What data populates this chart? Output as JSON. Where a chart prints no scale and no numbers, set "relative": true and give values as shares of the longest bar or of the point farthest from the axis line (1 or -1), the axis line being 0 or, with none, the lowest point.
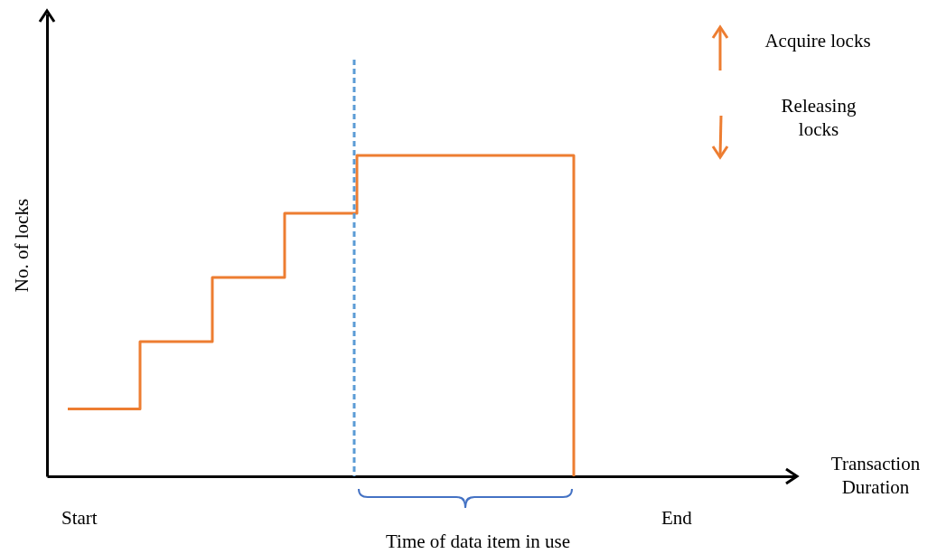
{
  "chart_data": {
    "type": "step",
    "relative": true,
    "ylabel": "No. of locks",
    "categories": [
      null,
      null,
      null,
      null,
      null,
      null,
      null,
      null
    ],
    "series": [
      {
        "color": "#ed7d31",
        "values": [
          0.21,
          0.42,
          0.62,
          0.82,
          1.0,
          1.0,
          1.0,
          0
        ]
      }
    ],
    "annotations": [
      "Acquire locks",
      "Releasing locks",
      "Start",
      "End",
      "Time of data item in use",
      "Transaction Duration"
    ],
    "grid": false
  }
}
